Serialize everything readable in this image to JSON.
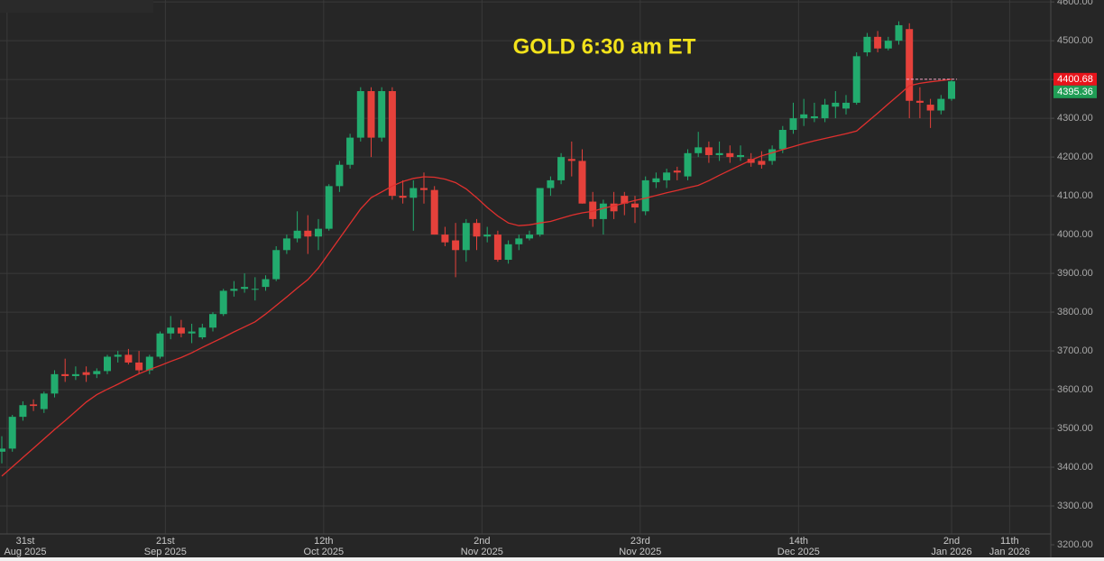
{
  "chart_data": {
    "type": "candlestick",
    "title": "GOLD 6:30 am ET",
    "title_color": "#f2e21b",
    "up_color": "#22ab6e",
    "down_color": "#e5413b",
    "grid": true,
    "x": [
      "2025-08-29",
      "2025-09-01",
      "2025-09-02",
      "2025-09-03",
      "2025-09-04",
      "2025-09-05",
      "2025-09-08",
      "2025-09-09",
      "2025-09-10",
      "2025-09-11",
      "2025-09-12",
      "2025-09-15",
      "2025-09-16",
      "2025-09-17",
      "2025-09-18",
      "2025-09-19",
      "2025-09-22",
      "2025-09-23",
      "2025-09-24",
      "2025-09-25",
      "2025-09-26",
      "2025-09-29",
      "2025-09-30",
      "2025-10-01",
      "2025-10-02",
      "2025-10-03",
      "2025-10-06",
      "2025-10-07",
      "2025-10-08",
      "2025-10-09",
      "2025-10-10",
      "2025-10-13",
      "2025-10-14",
      "2025-10-15",
      "2025-10-16",
      "2025-10-17",
      "2025-10-20",
      "2025-10-21",
      "2025-10-22",
      "2025-10-23",
      "2025-10-24",
      "2025-10-27",
      "2025-10-28",
      "2025-10-29",
      "2025-10-30",
      "2025-10-31",
      "2025-11-03",
      "2025-11-04",
      "2025-11-05",
      "2025-11-06",
      "2025-11-07",
      "2025-11-10",
      "2025-11-11",
      "2025-11-12",
      "2025-11-13",
      "2025-11-14",
      "2025-11-17",
      "2025-11-18",
      "2025-11-19",
      "2025-11-20",
      "2025-11-21",
      "2025-11-24",
      "2025-11-25",
      "2025-11-26",
      "2025-11-27",
      "2025-11-28",
      "2025-12-01",
      "2025-12-02",
      "2025-12-03",
      "2025-12-04",
      "2025-12-05",
      "2025-12-08",
      "2025-12-09",
      "2025-12-10",
      "2025-12-11",
      "2025-12-12",
      "2025-12-15",
      "2025-12-16",
      "2025-12-17",
      "2025-12-18",
      "2025-12-19",
      "2025-12-22",
      "2025-12-23",
      "2025-12-24",
      "2025-12-25",
      "2025-12-26",
      "2025-12-29",
      "2025-12-30",
      "2025-12-31",
      "2026-01-01",
      "2026-01-02"
    ],
    "open": [
      3440,
      3448,
      3530,
      3562,
      3550,
      3590,
      3640,
      3635,
      3645,
      3640,
      3648,
      3685,
      3690,
      3670,
      3650,
      3685,
      3745,
      3760,
      3745,
      3735,
      3760,
      3795,
      3855,
      3860,
      3860,
      3865,
      3885,
      3960,
      3990,
      4010,
      3995,
      4015,
      4125,
      4180,
      4250,
      4370,
      4250,
      4370,
      4100,
      4095,
      4120,
      4115,
      4000,
      3985,
      3960,
      4030,
      3995,
      4000,
      3935,
      3975,
      3990,
      4000,
      4120,
      4140,
      4195,
      4190,
      4085,
      4040,
      4080,
      4100,
      4080,
      4060,
      4135,
      4140,
      4165,
      4150,
      4210,
      4225,
      4205,
      4210,
      4200,
      4195,
      4190,
      4190,
      4220,
      4270,
      4300,
      4300,
      4300,
      4330,
      4325,
      4340,
      4470,
      4510,
      4480,
      4500,
      4530,
      4345,
      4335,
      4320,
      4350
    ],
    "high": [
      3480,
      3535,
      3570,
      3575,
      3595,
      3650,
      3680,
      3660,
      3660,
      3655,
      3690,
      3700,
      3705,
      3700,
      3690,
      3750,
      3790,
      3780,
      3770,
      3770,
      3800,
      3860,
      3880,
      3900,
      3890,
      3895,
      3970,
      4000,
      4060,
      4050,
      4040,
      4130,
      4190,
      4260,
      4380,
      4380,
      4380,
      4380,
      4140,
      4140,
      4160,
      4125,
      4020,
      4030,
      4040,
      4040,
      4020,
      4010,
      3985,
      4000,
      4010,
      4120,
      4150,
      4210,
      4240,
      4220,
      4110,
      4090,
      4110,
      4110,
      4100,
      4150,
      4160,
      4170,
      4175,
      4220,
      4265,
      4240,
      4240,
      4230,
      4230,
      4210,
      4215,
      4230,
      4280,
      4340,
      4350,
      4340,
      4350,
      4370,
      4360,
      4470,
      4520,
      4525,
      4510,
      4550,
      4545,
      4380,
      4350,
      4360,
      4400
    ],
    "low": [
      3410,
      3440,
      3520,
      3545,
      3540,
      3580,
      3620,
      3625,
      3620,
      3630,
      3640,
      3670,
      3665,
      3640,
      3640,
      3680,
      3730,
      3735,
      3720,
      3730,
      3750,
      3790,
      3840,
      3850,
      3830,
      3855,
      3880,
      3950,
      3980,
      3950,
      3960,
      4010,
      4110,
      4170,
      4240,
      4200,
      4240,
      4090,
      4080,
      4010,
      4080,
      4000,
      3970,
      3890,
      3930,
      3960,
      3980,
      3930,
      3925,
      3960,
      3985,
      3995,
      4100,
      4130,
      4150,
      4080,
      4020,
      4000,
      4040,
      4050,
      4030,
      4050,
      4120,
      4120,
      4140,
      4140,
      4200,
      4185,
      4190,
      4185,
      4190,
      4175,
      4170,
      4180,
      4210,
      4260,
      4280,
      4290,
      4290,
      4300,
      4310,
      4335,
      4460,
      4470,
      4475,
      4490,
      4300,
      4300,
      4275,
      4310,
      4345
    ],
    "close": [
      3448,
      3530,
      3560,
      3558,
      3590,
      3640,
      3635,
      3640,
      3638,
      3648,
      3685,
      3690,
      3670,
      3650,
      3685,
      3745,
      3760,
      3745,
      3750,
      3760,
      3795,
      3855,
      3860,
      3865,
      3860,
      3885,
      3960,
      3990,
      4010,
      3995,
      4015,
      4125,
      4180,
      4250,
      4370,
      4250,
      4370,
      4100,
      4095,
      4120,
      4115,
      4000,
      3980,
      3960,
      4030,
      3995,
      4000,
      3935,
      3975,
      3990,
      4000,
      4120,
      4140,
      4200,
      4190,
      4080,
      4040,
      4080,
      4060,
      4080,
      4070,
      4140,
      4145,
      4160,
      4160,
      4210,
      4225,
      4205,
      4210,
      4200,
      4205,
      4185,
      4180,
      4220,
      4270,
      4300,
      4310,
      4305,
      4335,
      4340,
      4340,
      4460,
      4510,
      4480,
      4500,
      4540,
      4345,
      4340,
      4320,
      4350,
      4395.36
    ],
    "ma": {
      "color": "#e0302e",
      "values": [
        3377,
        3401,
        3425,
        3449,
        3473,
        3497,
        3520,
        3544,
        3568,
        3587,
        3601,
        3614,
        3628,
        3641,
        3652,
        3662,
        3673,
        3683,
        3695,
        3709,
        3722,
        3735,
        3749,
        3762,
        3775,
        3795,
        3817,
        3839,
        3862,
        3884,
        3914,
        3952,
        3990,
        4028,
        4066,
        4095,
        4110,
        4125,
        4137,
        4145,
        4149,
        4148,
        4143,
        4134,
        4118,
        4095,
        4070,
        4048,
        4030,
        4023,
        4025,
        4030,
        4034,
        4042,
        4050,
        4056,
        4060,
        4068,
        4074,
        4081,
        4088,
        4094,
        4101,
        4108,
        4114,
        4121,
        4127,
        4139,
        4153,
        4166,
        4179,
        4192,
        4203,
        4211,
        4219,
        4227,
        4235,
        4242,
        4248,
        4254,
        4260,
        4267,
        4290,
        4313,
        4337,
        4360,
        4384,
        4390,
        4394,
        4397,
        4400.68
      ]
    },
    "price_labels": [
      {
        "value": 4400.68,
        "color": "#e8141b"
      },
      {
        "value": 4395.36,
        "color": "#1f9d55"
      }
    ],
    "ylim": [
      3200,
      4605
    ],
    "yticks": [
      {
        "value": 3200,
        "label": "3200.00"
      },
      {
        "value": 3300,
        "label": "3300.00"
      },
      {
        "value": 3400,
        "label": "3400.00"
      },
      {
        "value": 3500,
        "label": "3500.00"
      },
      {
        "value": 3600,
        "label": "3600.00"
      },
      {
        "value": 3700,
        "label": "3700.00"
      },
      {
        "value": 3800,
        "label": "3800.00"
      },
      {
        "value": 3900,
        "label": "3900.00"
      },
      {
        "value": 4000,
        "label": "4000.00"
      },
      {
        "value": 4100,
        "label": "4100.00"
      },
      {
        "value": 4200,
        "label": "4200.00"
      },
      {
        "value": 4300,
        "label": "4300.00"
      },
      {
        "value": 4400,
        "label": "4400.00"
      },
      {
        "value": 4500,
        "label": "4500.00"
      },
      {
        "value": 4600,
        "label": "4600.00"
      }
    ],
    "xticks": [
      {
        "value": "2025-08-31",
        "label": "31st",
        "sublabel": "Aug 2025"
      },
      {
        "value": "2025-09-21",
        "label": "21st",
        "sublabel": "Sep 2025"
      },
      {
        "value": "2025-10-12",
        "label": "12th",
        "sublabel": "Oct 2025"
      },
      {
        "value": "2025-11-02",
        "label": "2nd",
        "sublabel": "Nov 2025"
      },
      {
        "value": "2025-11-23",
        "label": "23rd",
        "sublabel": "Nov 2025"
      },
      {
        "value": "2025-12-14",
        "label": "14th",
        "sublabel": "Dec 2025"
      },
      {
        "value": "2026-01-02",
        "label": "2nd",
        "sublabel": "Jan 2026"
      },
      {
        "value": "2026-01-11",
        "label": "11th",
        "sublabel": "Jan 2026"
      }
    ]
  }
}
